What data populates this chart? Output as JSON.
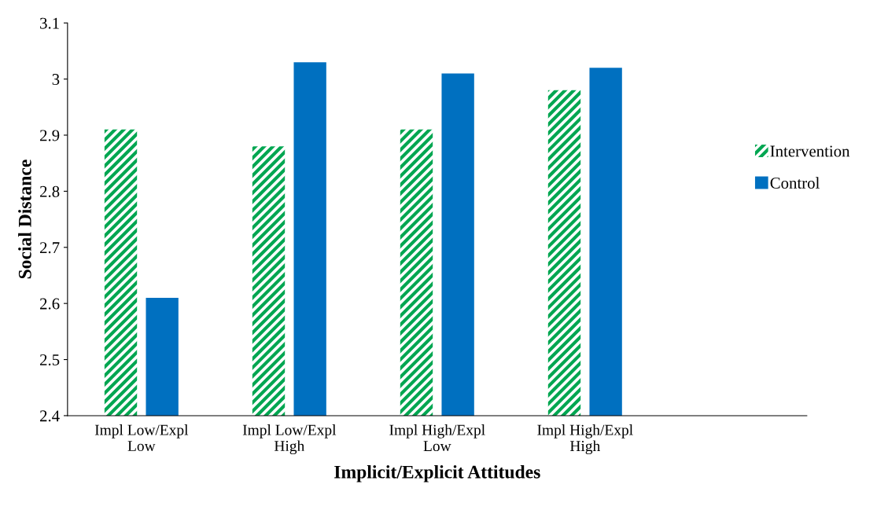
{
  "chart_data": {
    "type": "bar",
    "xlabel": "Implicit/Explicit Attitudes",
    "ylabel": "Social Distance",
    "categories": [
      "Impl Low/Expl\nLow",
      "Impl Low/Expl\nHigh",
      "Impl High/Expl\nLow",
      "Impl High/Expl\nHigh",
      null
    ],
    "series": [
      {
        "name": "Intervention",
        "color": "#00a651",
        "values": [
          2.91,
          2.88,
          2.91,
          2.98,
          null
        ]
      },
      {
        "name": "Control",
        "color": "#0070c0",
        "values": [
          2.61,
          3.03,
          3.01,
          3.02,
          null
        ]
      }
    ],
    "ylim": [
      2.4,
      3.1
    ],
    "yticks": [
      2.4,
      2.5,
      2.6,
      2.7,
      2.8,
      2.9,
      3,
      3.1
    ],
    "grid": false,
    "legend": "right"
  }
}
